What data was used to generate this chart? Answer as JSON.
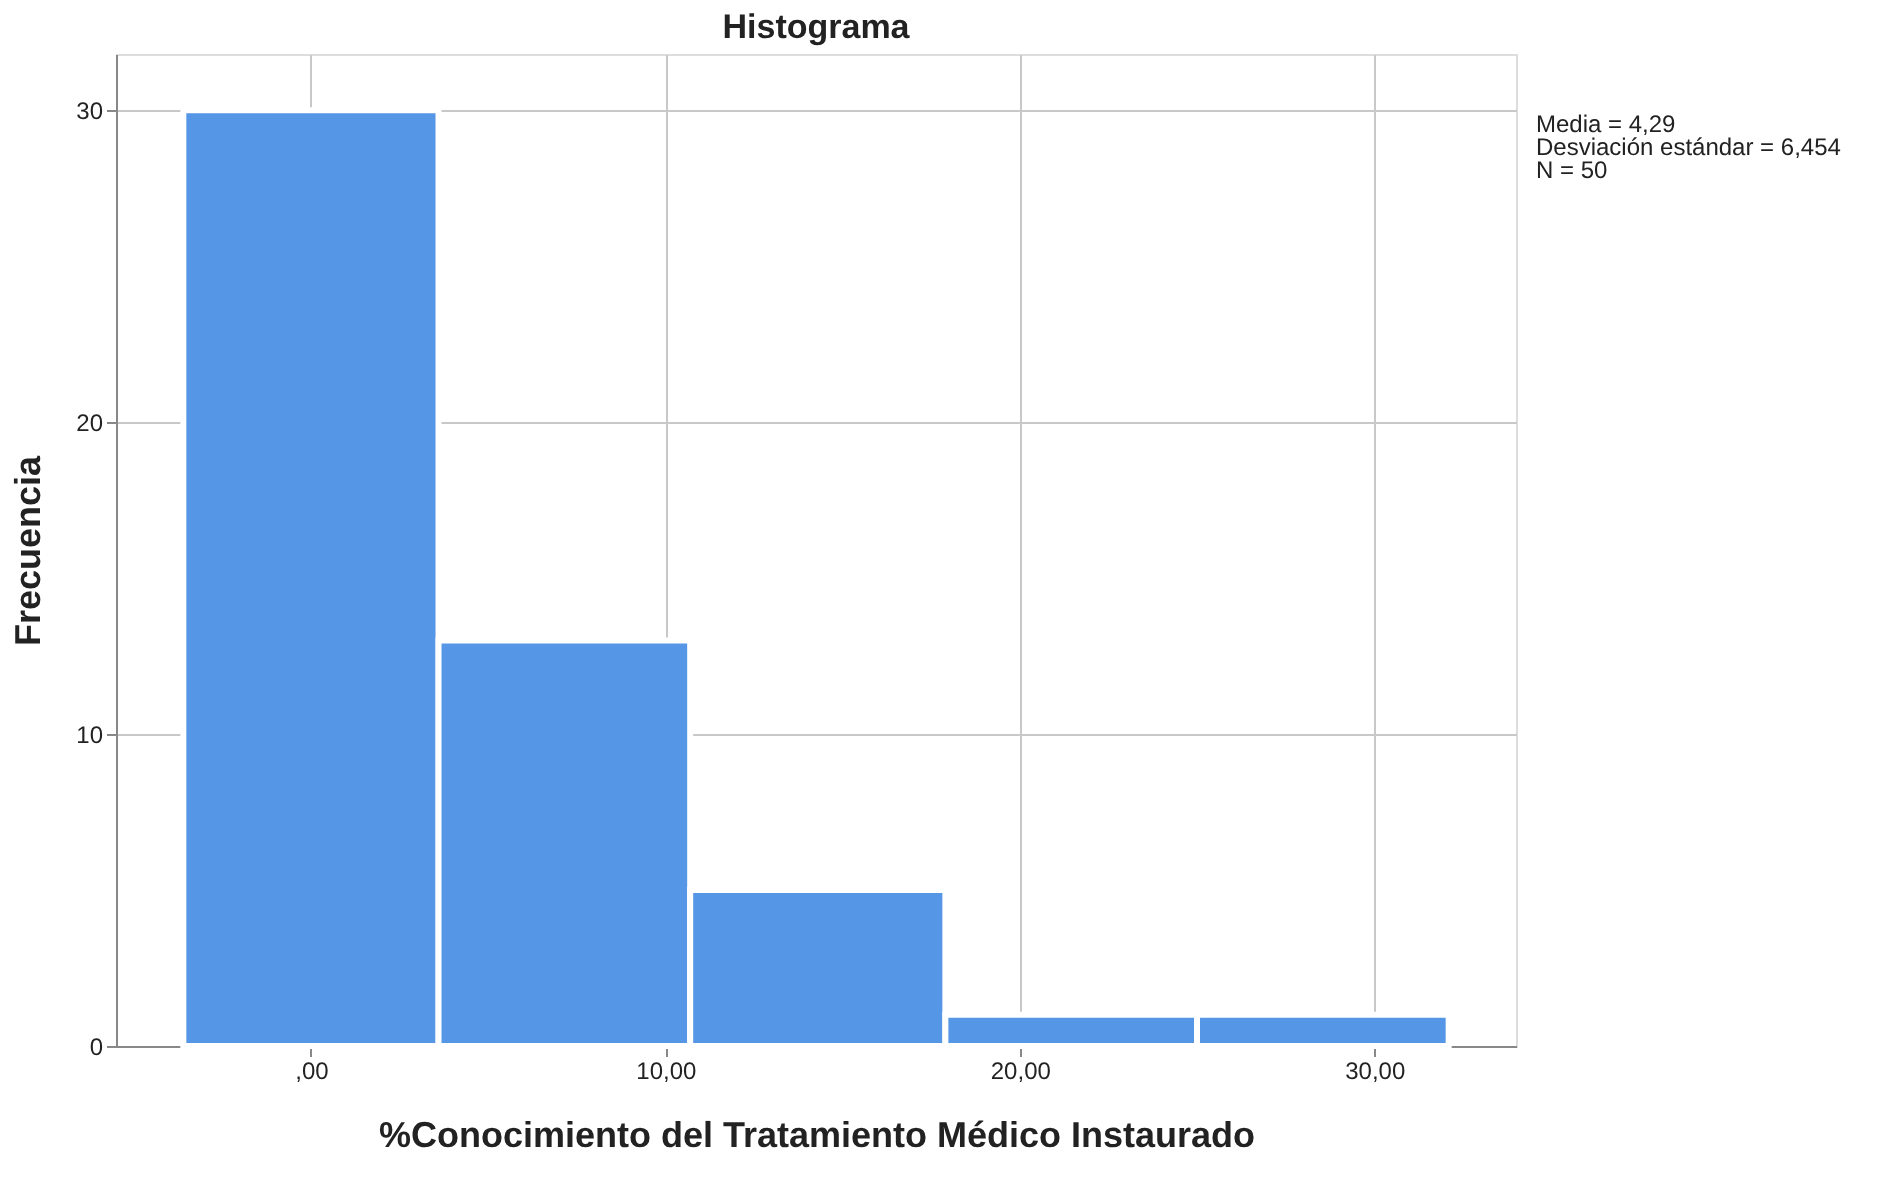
{
  "chart_data": {
    "type": "histogram",
    "title": "Histograma",
    "xlabel": "%Conocimiento del Tratamiento Médico Instaurado",
    "ylabel": "Frecuencia",
    "bins": [
      -3.6,
      3.6,
      10.7,
      17.9,
      25.0,
      32.1
    ],
    "values": [
      30,
      13,
      5,
      1,
      1
    ],
    "color": "#5596e6",
    "xlim": [
      -5.5,
      34.0
    ],
    "xticks": [
      {
        "value": 0,
        "label": ",00"
      },
      {
        "value": 10,
        "label": "10,00"
      },
      {
        "value": 20,
        "label": "20,00"
      },
      {
        "value": 30,
        "label": "30,00"
      }
    ],
    "ylim": [
      0,
      31.8
    ],
    "yticks": [
      0,
      10,
      20,
      30
    ],
    "grid": true,
    "annotations": [
      "Media = 4,29",
      "Desviación estándar = 6,454",
      "N = 50"
    ]
  }
}
